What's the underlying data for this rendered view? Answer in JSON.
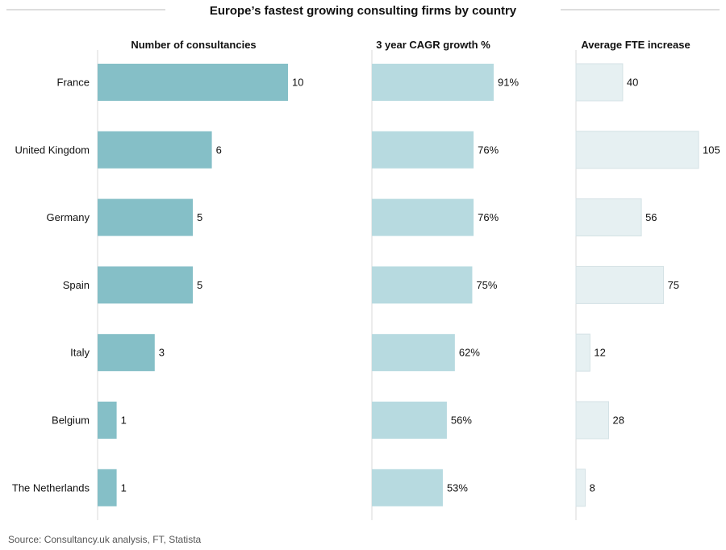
{
  "chart_data": {
    "type": "bar",
    "orientation": "horizontal",
    "title": "Europe’s fastest growing consulting firms by country",
    "categories": [
      "France",
      "United Kingdom",
      "Germany",
      "Spain",
      "Italy",
      "Belgium",
      "The Netherlands"
    ],
    "panels": [
      {
        "title": "Number of consultancies",
        "values": [
          10,
          6,
          5,
          5,
          3,
          1,
          1
        ],
        "labels": [
          "10",
          "6",
          "5",
          "5",
          "3",
          "1",
          "1"
        ],
        "color": "#85bfc7",
        "xlim": [
          0,
          10
        ]
      },
      {
        "title": "3 year CAGR growth %",
        "values": [
          91,
          76,
          76,
          75,
          62,
          56,
          53
        ],
        "labels": [
          "91%",
          "76%",
          "76%",
          "75%",
          "62%",
          "56%",
          "53%"
        ],
        "color": "#b7dae0",
        "xlim": [
          0,
          91
        ]
      },
      {
        "title": "Average FTE increase",
        "values": [
          40,
          105,
          56,
          75,
          12,
          28,
          8
        ],
        "labels": [
          "40",
          "105",
          "56",
          "75",
          "12",
          "28",
          "8"
        ],
        "color": "#e6f0f2",
        "stroke": "#d4e2e5",
        "xlim": [
          0,
          105
        ]
      }
    ],
    "source": "Source: Consultancy.uk analysis, FT, Statista",
    "grid": false,
    "legend": "none"
  }
}
